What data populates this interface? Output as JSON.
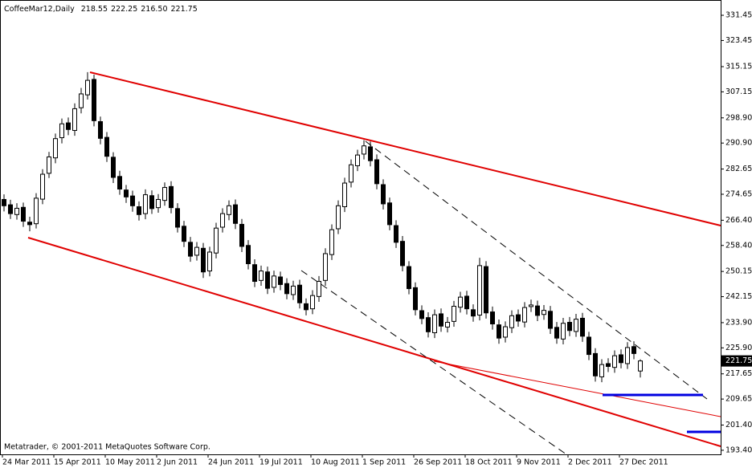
{
  "chart_data": {
    "type": "candlestick",
    "title": "CoffeeMar12,Daily",
    "ohlc_labels": [
      "218.55",
      "222.25",
      "216.50",
      "221.75"
    ],
    "footer": "Metatrader, © 2001-2011 MetaQuotes Software Corp.",
    "up_color": "#ffffff",
    "down_color": "#000000",
    "wick_color": "#000000",
    "ylim": [
      192.1,
      336.3
    ],
    "yticks": [
      331.45,
      323.45,
      315.15,
      307.15,
      {
        "value": 298.9,
        "label": "298.90"
      },
      {
        "value": 290.9,
        "label": "290.90"
      },
      282.65,
      274.65,
      {
        "value": 266.4,
        "label": "266.40"
      },
      {
        "value": 258.4,
        "label": "258.40"
      },
      250.15,
      242.15,
      {
        "value": 233.9,
        "label": "233.90"
      },
      {
        "value": 225.9,
        "label": "225.90"
      },
      217.65,
      209.65,
      {
        "value": 201.4,
        "label": "201.40"
      },
      {
        "value": 193.4,
        "label": "193.40"
      }
    ],
    "categories": [
      "24 Mar 2011",
      null,
      null,
      null,
      null,
      null,
      null,
      null,
      "15 Apr 2011",
      null,
      null,
      null,
      null,
      null,
      null,
      null,
      "10 May 2011",
      null,
      null,
      null,
      null,
      null,
      null,
      null,
      "2 Jun 2011",
      null,
      null,
      null,
      null,
      null,
      null,
      null,
      "24 Jun 2011",
      null,
      null,
      null,
      null,
      null,
      null,
      null,
      "19 Jul 2011",
      null,
      null,
      null,
      null,
      null,
      null,
      null,
      "10 Aug 2011",
      null,
      null,
      null,
      null,
      null,
      null,
      null,
      "1 Sep 2011",
      null,
      null,
      null,
      null,
      null,
      null,
      null,
      "26 Sep 2011",
      null,
      null,
      null,
      null,
      null,
      null,
      null,
      "18 Oct 2011",
      null,
      null,
      null,
      null,
      null,
      null,
      null,
      "9 Nov 2011",
      null,
      null,
      null,
      null,
      null,
      null,
      null,
      "2 Dec 2011",
      null,
      null,
      null,
      null,
      null,
      null,
      null,
      "27 Dec 2011",
      null,
      null,
      null
    ],
    "open": [
      273.0,
      271.3,
      268.2,
      270.5,
      265.8,
      265.3,
      273.1,
      281.3,
      286.2,
      292.6,
      297.3,
      294.9,
      302.1,
      306.2,
      311.1,
      297.7,
      292.7,
      286.4,
      280.3,
      276.0,
      274.1,
      270.7,
      268.5,
      274.2,
      270.4,
      272.7,
      277.1,
      270.1,
      264.5,
      259.4,
      255.3,
      257.5,
      250.3,
      256.0,
      264.2,
      268.2,
      271.3,
      265.1,
      258.4,
      252.3,
      247.3,
      250.0,
      245.1,
      248.4,
      246.3,
      242.8,
      245.8,
      239.9,
      238.3,
      242.2,
      247.3,
      255.5,
      263.7,
      270.7,
      278.5,
      283.7,
      287.4,
      289.7,
      285.6,
      277.7,
      271.9,
      264.7,
      259.7,
      251.7,
      245.0,
      237.7,
      235.5,
      230.7,
      236.7,
      232.5,
      234.3,
      238.8,
      242.3,
      238.0,
      236.3,
      251.7,
      237.3,
      233.2,
      229.3,
      232.3,
      236.4,
      234.1,
      239.0,
      239.2,
      236.5,
      237.5,
      232.4,
      228.7,
      234.0,
      231.1,
      235.3,
      229.3,
      224.1,
      216.7,
      220.9,
      219.7,
      223.7,
      220.9,
      226.3,
      218.55
    ],
    "high": [
      274.6,
      272.9,
      271.8,
      272.0,
      267.5,
      275.0,
      282.6,
      288.1,
      293.9,
      298.7,
      299.0,
      303.5,
      308.4,
      313.4,
      312.6,
      299.3,
      294.4,
      288.0,
      282.1,
      277.6,
      275.8,
      272.4,
      276.2,
      275.9,
      274.7,
      278.4,
      278.8,
      271.8,
      266.2,
      261.1,
      259.5,
      259.2,
      258.0,
      265.6,
      270.2,
      272.7,
      273.0,
      266.8,
      260.1,
      254.0,
      252.0,
      251.7,
      250.4,
      250.1,
      248.0,
      247.2,
      247.5,
      241.6,
      244.2,
      248.7,
      257.5,
      265.1,
      272.7,
      279.9,
      285.7,
      288.8,
      291.8,
      291.4,
      287.3,
      279.4,
      273.6,
      266.4,
      261.4,
      253.4,
      246.7,
      239.4,
      237.2,
      238.1,
      238.4,
      235.7,
      240.8,
      243.7,
      244.0,
      239.7,
      254.5,
      253.4,
      239.0,
      234.9,
      234.3,
      237.8,
      238.1,
      240.4,
      241.2,
      240.9,
      239.5,
      239.2,
      234.1,
      235.4,
      235.7,
      236.7,
      237.0,
      231.0,
      225.8,
      222.3,
      222.6,
      225.1,
      225.4,
      227.7,
      228.0,
      222.25
    ],
    "low": [
      269.2,
      266.8,
      266.6,
      264.3,
      262.9,
      263.8,
      271.5,
      279.8,
      284.5,
      290.8,
      293.4,
      293.2,
      300.3,
      304.7,
      296.2,
      290.5,
      284.9,
      278.2,
      274.5,
      271.9,
      269.1,
      266.3,
      266.7,
      268.4,
      268.8,
      271.0,
      268.6,
      262.5,
      257.9,
      253.2,
      253.6,
      248.1,
      248.6,
      254.3,
      262.5,
      266.4,
      263.6,
      256.3,
      250.8,
      245.2,
      245.6,
      243.0,
      243.4,
      244.2,
      241.3,
      241.1,
      238.4,
      236.2,
      236.6,
      240.5,
      245.6,
      253.8,
      262.0,
      269.0,
      276.8,
      282.0,
      285.7,
      283.5,
      276.2,
      269.8,
      263.2,
      257.6,
      250.2,
      242.9,
      236.2,
      233.4,
      229.2,
      229.0,
      231.0,
      230.8,
      232.6,
      237.1,
      236.5,
      234.2,
      234.6,
      235.2,
      231.7,
      227.2,
      227.6,
      230.6,
      232.6,
      232.4,
      237.3,
      234.4,
      234.8,
      230.3,
      227.2,
      227.0,
      229.6,
      229.4,
      227.8,
      222.0,
      215.2,
      215.0,
      218.2,
      218.0,
      219.4,
      219.2,
      222.3,
      216.5
    ],
    "close": [
      271.0,
      268.5,
      270.2,
      266.1,
      265.0,
      273.4,
      281.0,
      286.5,
      292.3,
      297.0,
      295.2,
      301.8,
      306.5,
      310.8,
      298.0,
      292.4,
      286.7,
      280.0,
      276.3,
      273.8,
      271.0,
      268.2,
      274.5,
      270.1,
      273.0,
      276.8,
      270.4,
      264.2,
      259.7,
      255.0,
      257.8,
      250.0,
      256.3,
      263.9,
      268.5,
      271.0,
      265.4,
      258.1,
      252.6,
      247.0,
      250.3,
      244.8,
      248.7,
      246.0,
      243.1,
      245.5,
      240.2,
      238.0,
      242.5,
      247.0,
      255.8,
      263.4,
      271.0,
      278.2,
      284.0,
      287.1,
      290.0,
      285.3,
      278.0,
      271.6,
      265.0,
      259.4,
      252.0,
      244.7,
      238.0,
      235.2,
      231.0,
      236.4,
      232.8,
      234.0,
      239.1,
      242.0,
      238.3,
      236.0,
      252.0,
      237.0,
      233.5,
      229.0,
      232.6,
      236.1,
      234.4,
      238.7,
      239.5,
      236.2,
      237.8,
      232.1,
      229.0,
      233.7,
      231.4,
      235.0,
      229.6,
      223.8,
      217.0,
      220.6,
      220.0,
      223.4,
      221.2,
      226.0,
      224.1,
      221.75
    ]
  }
}
